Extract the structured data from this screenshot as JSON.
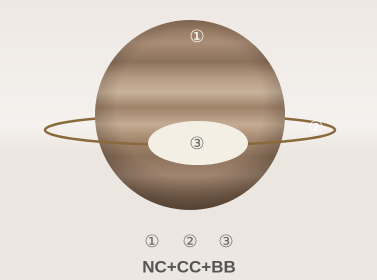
{
  "annotations": [
    "①",
    "②",
    "③"
  ],
  "legend": {
    "numbers": [
      "①",
      "②",
      "③"
    ],
    "code": "NC+CC+BB"
  }
}
